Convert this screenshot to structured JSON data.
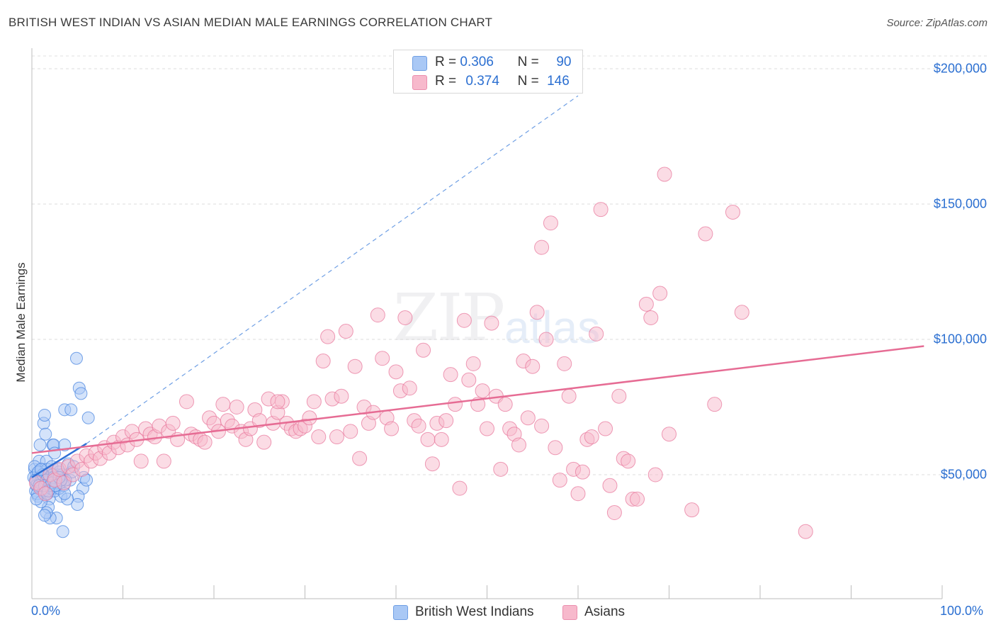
{
  "header": {
    "title": "BRITISH WEST INDIAN VS ASIAN MEDIAN MALE EARNINGS CORRELATION CHART",
    "source": "Source: ZipAtlas.com"
  },
  "watermark": {
    "zip": "ZIP",
    "atlas": "atlas"
  },
  "legend": {
    "rows": [
      {
        "r_key": "R =",
        "r_val": "0.306",
        "n_key": "N =",
        "n_val": "90",
        "color": "#a9c8f5"
      },
      {
        "r_key": "R =",
        "r_val": "0.374",
        "n_key": "N =",
        "n_val": "146",
        "color": "#f7b9cc"
      }
    ]
  },
  "bottom_legend": [
    "British West Indians",
    "Asians"
  ],
  "chart_data": {
    "type": "scatter",
    "title": "BRITISH WEST INDIAN VS ASIAN MEDIAN MALE EARNINGS CORRELATION CHART",
    "xlabel": "",
    "ylabel": "Median Male Earnings",
    "xlim": [
      0,
      100
    ],
    "ylim": [
      0,
      210000
    ],
    "x_tick_labels": [
      "0.0%",
      "100.0%"
    ],
    "y_ticks": [
      50000,
      100000,
      150000,
      200000
    ],
    "y_tick_labels": [
      "$50,000",
      "$100,000",
      "$150,000",
      "$200,000"
    ],
    "grid": "horizontal dashed",
    "legend_position": "top-center",
    "series": [
      {
        "name": "British West Indians",
        "color": "#4a86e0",
        "fill": "#a9c8f5",
        "trend": {
          "x": [
            0.0,
            6.0
          ],
          "y": [
            49000,
            61500
          ],
          "extended_dashed": [
            6.0,
            60.0
          ],
          "y_ext_end": 190000
        },
        "points": [
          [
            0.3,
            52000
          ],
          [
            0.5,
            50000
          ],
          [
            0.6,
            47000
          ],
          [
            0.4,
            44000
          ],
          [
            0.8,
            55000
          ],
          [
            0.7,
            42000
          ],
          [
            0.9,
            61000
          ],
          [
            1.1,
            52000
          ],
          [
            1.2,
            48000
          ],
          [
            1.0,
            45000
          ],
          [
            1.3,
            69000
          ],
          [
            1.4,
            72000
          ],
          [
            1.5,
            65000
          ],
          [
            1.6,
            55000
          ],
          [
            1.7,
            52000
          ],
          [
            1.8,
            50000
          ],
          [
            1.2,
            46000
          ],
          [
            1.5,
            43000
          ],
          [
            1.9,
            41000
          ],
          [
            2.0,
            47000
          ],
          [
            2.1,
            49000
          ],
          [
            2.2,
            53000
          ],
          [
            2.3,
            61000
          ],
          [
            2.4,
            61000
          ],
          [
            2.5,
            58000
          ],
          [
            2.6,
            45000
          ],
          [
            2.8,
            50000
          ],
          [
            3.0,
            51000
          ],
          [
            3.2,
            42000
          ],
          [
            2.7,
            34000
          ],
          [
            2.0,
            34000
          ],
          [
            1.8,
            38000
          ],
          [
            1.6,
            36000
          ],
          [
            1.4,
            35000
          ],
          [
            3.4,
            29000
          ],
          [
            3.1,
            47000
          ],
          [
            3.6,
            61000
          ],
          [
            4.0,
            54000
          ],
          [
            4.2,
            48000
          ],
          [
            4.4,
            51000
          ],
          [
            4.6,
            53000
          ],
          [
            4.9,
            93000
          ],
          [
            5.2,
            82000
          ],
          [
            5.4,
            80000
          ],
          [
            3.6,
            74000
          ],
          [
            4.3,
            74000
          ],
          [
            5.6,
            45000
          ],
          [
            5.1,
            42000
          ],
          [
            5.0,
            39000
          ],
          [
            5.7,
            49000
          ],
          [
            6.0,
            48000
          ],
          [
            6.2,
            71000
          ],
          [
            0.2,
            49000
          ],
          [
            0.3,
            53000
          ],
          [
            0.5,
            46000
          ],
          [
            0.6,
            43000
          ],
          [
            0.7,
            51000
          ],
          [
            0.9,
            47000
          ],
          [
            1.0,
            40000
          ],
          [
            1.1,
            49000
          ],
          [
            1.3,
            44000
          ],
          [
            1.5,
            47000
          ],
          [
            1.7,
            43000
          ],
          [
            1.9,
            48000
          ],
          [
            2.1,
            45000
          ],
          [
            2.3,
            50000
          ],
          [
            2.5,
            44000
          ],
          [
            2.6,
            48000
          ],
          [
            2.8,
            47000
          ],
          [
            3.0,
            45000
          ],
          [
            3.3,
            50000
          ],
          [
            3.5,
            46000
          ],
          [
            3.7,
            48000
          ],
          [
            3.9,
            41000
          ],
          [
            0.4,
            48000
          ],
          [
            0.8,
            46000
          ],
          [
            1.2,
            50000
          ],
          [
            1.6,
            48000
          ],
          [
            2.0,
            46000
          ],
          [
            2.4,
            49000
          ],
          [
            2.9,
            52000
          ],
          [
            3.2,
            48000
          ],
          [
            3.6,
            43000
          ],
          [
            0.5,
            41000
          ],
          [
            1.0,
            52000
          ],
          [
            1.4,
            46000
          ],
          [
            1.8,
            44000
          ],
          [
            2.2,
            47000
          ],
          [
            2.6,
            46000
          ],
          [
            3.0,
            49000
          ]
        ]
      },
      {
        "name": "Asians",
        "color": "#e8799e",
        "fill": "#f7b9cc",
        "trend": {
          "x": [
            0.0,
            98.0
          ],
          "y": [
            58000,
            97500
          ]
        },
        "points": [
          [
            0.5,
            47000
          ],
          [
            1.0,
            45000
          ],
          [
            1.5,
            43000
          ],
          [
            2.0,
            50000
          ],
          [
            2.5,
            48000
          ],
          [
            3.0,
            52000
          ],
          [
            3.5,
            47000
          ],
          [
            4.0,
            53000
          ],
          [
            4.5,
            50000
          ],
          [
            5.0,
            55000
          ],
          [
            5.5,
            52000
          ],
          [
            6.0,
            57000
          ],
          [
            6.5,
            55000
          ],
          [
            7.0,
            58000
          ],
          [
            7.5,
            56000
          ],
          [
            8.0,
            60000
          ],
          [
            8.5,
            58000
          ],
          [
            9.0,
            62000
          ],
          [
            9.5,
            60000
          ],
          [
            10.0,
            64000
          ],
          [
            10.5,
            61000
          ],
          [
            11.0,
            66000
          ],
          [
            11.5,
            63000
          ],
          [
            12.0,
            55000
          ],
          [
            12.5,
            67000
          ],
          [
            13.0,
            65000
          ],
          [
            13.5,
            64000
          ],
          [
            14.0,
            68000
          ],
          [
            14.5,
            55000
          ],
          [
            15.0,
            66000
          ],
          [
            15.5,
            69000
          ],
          [
            16.0,
            63000
          ],
          [
            17.0,
            77000
          ],
          [
            17.5,
            65000
          ],
          [
            18.0,
            64000
          ],
          [
            18.5,
            63000
          ],
          [
            19.0,
            62000
          ],
          [
            19.5,
            71000
          ],
          [
            20.0,
            69000
          ],
          [
            20.5,
            66000
          ],
          [
            21.0,
            76000
          ],
          [
            21.5,
            70000
          ],
          [
            22.0,
            68000
          ],
          [
            22.5,
            75000
          ],
          [
            23.0,
            66000
          ],
          [
            23.5,
            63000
          ],
          [
            24.0,
            67000
          ],
          [
            24.5,
            74000
          ],
          [
            25.0,
            70000
          ],
          [
            25.5,
            62000
          ],
          [
            26.0,
            78000
          ],
          [
            26.5,
            69000
          ],
          [
            27.0,
            73000
          ],
          [
            27.5,
            77000
          ],
          [
            28.0,
            69000
          ],
          [
            28.5,
            67000
          ],
          [
            29.0,
            66000
          ],
          [
            29.5,
            67000
          ],
          [
            30.0,
            68000
          ],
          [
            30.5,
            71000
          ],
          [
            31.0,
            77000
          ],
          [
            31.5,
            64000
          ],
          [
            32.0,
            92000
          ],
          [
            32.5,
            101000
          ],
          [
            33.0,
            78000
          ],
          [
            33.5,
            64000
          ],
          [
            34.0,
            79000
          ],
          [
            34.5,
            103000
          ],
          [
            35.0,
            66000
          ],
          [
            35.5,
            90000
          ],
          [
            36.0,
            56000
          ],
          [
            36.5,
            75000
          ],
          [
            37.0,
            69000
          ],
          [
            37.5,
            73000
          ],
          [
            38.0,
            109000
          ],
          [
            38.5,
            93000
          ],
          [
            39.0,
            71000
          ],
          [
            39.5,
            67000
          ],
          [
            40.0,
            88000
          ],
          [
            40.5,
            81000
          ],
          [
            41.0,
            108000
          ],
          [
            41.5,
            82000
          ],
          [
            42.0,
            70000
          ],
          [
            42.5,
            68000
          ],
          [
            43.0,
            96000
          ],
          [
            43.5,
            63000
          ],
          [
            44.0,
            54000
          ],
          [
            44.5,
            69000
          ],
          [
            45.0,
            63000
          ],
          [
            45.5,
            70000
          ],
          [
            46.0,
            87000
          ],
          [
            46.5,
            76000
          ],
          [
            47.0,
            45000
          ],
          [
            47.5,
            107000
          ],
          [
            48.0,
            85000
          ],
          [
            48.5,
            91000
          ],
          [
            49.0,
            76000
          ],
          [
            49.5,
            81000
          ],
          [
            50.0,
            67000
          ],
          [
            50.5,
            106000
          ],
          [
            51.0,
            79000
          ],
          [
            51.5,
            52000
          ],
          [
            52.0,
            76000
          ],
          [
            52.5,
            67000
          ],
          [
            53.0,
            65000
          ],
          [
            53.5,
            61000
          ],
          [
            54.0,
            92000
          ],
          [
            54.5,
            71000
          ],
          [
            55.0,
            90000
          ],
          [
            55.5,
            110000
          ],
          [
            56.0,
            68000
          ],
          [
            56.5,
            100000
          ],
          [
            57.0,
            143000
          ],
          [
            57.5,
            60000
          ],
          [
            58.0,
            48000
          ],
          [
            58.5,
            91000
          ],
          [
            59.0,
            79000
          ],
          [
            59.5,
            52000
          ],
          [
            60.0,
            43000
          ],
          [
            60.5,
            51000
          ],
          [
            61.0,
            63000
          ],
          [
            61.5,
            64000
          ],
          [
            62.0,
            102000
          ],
          [
            62.5,
            148000
          ],
          [
            63.0,
            67000
          ],
          [
            63.5,
            46000
          ],
          [
            64.0,
            36000
          ],
          [
            64.5,
            79000
          ],
          [
            65.0,
            56000
          ],
          [
            65.5,
            55000
          ],
          [
            66.0,
            41000
          ],
          [
            66.5,
            41000
          ],
          [
            67.5,
            113000
          ],
          [
            68.0,
            108000
          ],
          [
            68.5,
            50000
          ],
          [
            69.0,
            117000
          ],
          [
            69.5,
            161000
          ],
          [
            70.0,
            65000
          ],
          [
            72.5,
            37000
          ],
          [
            74.0,
            139000
          ],
          [
            75.0,
            76000
          ],
          [
            77.0,
            147000
          ],
          [
            78.0,
            110000
          ],
          [
            85.0,
            29000
          ],
          [
            56.0,
            134000
          ],
          [
            27.0,
            77000
          ]
        ]
      }
    ]
  }
}
